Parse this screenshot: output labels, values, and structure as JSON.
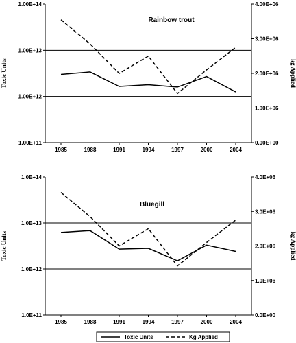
{
  "chart_data": [
    {
      "type": "line",
      "title": "Rainbow trout",
      "x": [
        "1985",
        "1988",
        "1991",
        "1994",
        "1997",
        "2000",
        "2004"
      ],
      "ylabel_left": "Toxic Units",
      "ylabel_right": "kg Applied",
      "left_axis_scale": "log",
      "left_ylim": [
        100000000000.0,
        100000000000000.0
      ],
      "left_ticks": [
        "1.00E+11",
        "1.00E+12",
        "1.00E+13",
        "1.00E+14"
      ],
      "right_ylim": [
        0,
        4000000
      ],
      "right_ticks": [
        "0.00E+00",
        "1.00E+06",
        "2.00E+06",
        "3.00E+06",
        "4.00E+06"
      ],
      "gridlines_at": [
        1000000000000.0,
        10000000000000.0
      ],
      "series": [
        {
          "name": "Toxic Units",
          "axis": "left",
          "style": "solid",
          "values": [
            3000000000000.0,
            3400000000000.0,
            1650000000000.0,
            1800000000000.0,
            1600000000000.0,
            2700000000000.0,
            1250000000000.0
          ]
        },
        {
          "name": "Kg Applied",
          "axis": "right",
          "style": "dashed",
          "values": [
            3550000,
            2850000,
            2000000,
            2500000,
            1420000,
            2100000,
            2750000
          ]
        }
      ]
    },
    {
      "type": "line",
      "title": "Bluegill",
      "x": [
        "1985",
        "1988",
        "1991",
        "1994",
        "1997",
        "2000",
        "2004"
      ],
      "ylabel_left": "Toxic Units",
      "ylabel_right": "kg Applied",
      "left_axis_scale": "log",
      "left_ylim": [
        100000000000.0,
        100000000000000.0
      ],
      "left_ticks": [
        "1.0E+11",
        "1.0E+12",
        "1.0E+13",
        "1.0E+14"
      ],
      "right_ylim": [
        0,
        4000000
      ],
      "right_ticks": [
        "0.0E+00",
        "1.0E+06",
        "2.0E+06",
        "3.0E+06",
        "4.0E+06"
      ],
      "gridlines_at": [
        1000000000000.0,
        10000000000000.0
      ],
      "series": [
        {
          "name": "Toxic Units",
          "axis": "left",
          "style": "solid",
          "values": [
            6200000000000.0,
            6800000000000.0,
            2700000000000.0,
            2800000000000.0,
            1500000000000.0,
            3300000000000.0,
            2400000000000.0
          ]
        },
        {
          "name": "Kg Applied",
          "axis": "right",
          "style": "dashed",
          "values": [
            3550000,
            2850000,
            2000000,
            2500000,
            1420000,
            2100000,
            2750000
          ]
        }
      ]
    }
  ],
  "legend": {
    "placement": "bottom",
    "entries": [
      {
        "label": "Toxic Units",
        "style": "solid"
      },
      {
        "label": "Kg Applied",
        "style": "dashed"
      }
    ]
  }
}
